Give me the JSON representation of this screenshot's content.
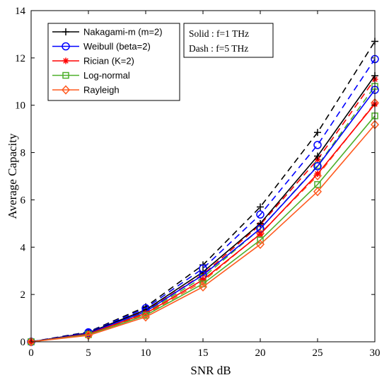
{
  "chart_data": {
    "type": "line",
    "title": "",
    "xlabel": "SNR dB",
    "ylabel": "Average Capacity",
    "xlim": [
      0,
      30
    ],
    "ylim": [
      0,
      14
    ],
    "xticks": [
      0,
      5,
      10,
      15,
      20,
      25,
      30
    ],
    "yticks": [
      0,
      2,
      4,
      6,
      8,
      10,
      12,
      14
    ],
    "grid": false,
    "legend_position": "top-left",
    "x": [
      0,
      5,
      10,
      15,
      20,
      25,
      30
    ],
    "line_style_note": [
      "Solid : f=1 THz",
      "Dash : f=5 THz"
    ],
    "series": [
      {
        "name": "Nakagami-m (m=2)",
        "color": "#000000",
        "marker": "plus",
        "solid": [
          0,
          0.38,
          1.35,
          2.95,
          5.0,
          7.85,
          11.25
        ],
        "dash": [
          0,
          0.42,
          1.48,
          3.25,
          5.7,
          8.85,
          12.7
        ]
      },
      {
        "name": "Weibull (beta=2)",
        "color": "#0000ff",
        "marker": "circle",
        "solid": [
          0,
          0.36,
          1.28,
          2.82,
          4.78,
          7.42,
          10.65
        ],
        "dash": [
          0,
          0.4,
          1.42,
          3.1,
          5.38,
          8.32,
          11.95
        ]
      },
      {
        "name": "Rician (K=2)",
        "color": "#ff0000",
        "marker": "star",
        "solid": [
          0,
          0.33,
          1.2,
          2.62,
          4.55,
          7.1,
          10.05
        ],
        "dash": [
          0,
          0.36,
          1.3,
          2.85,
          4.95,
          7.7,
          11.1
        ]
      },
      {
        "name": "Log-normal",
        "color": "#4daf2a",
        "marker": "square",
        "solid": [
          0,
          0.3,
          1.12,
          2.45,
          4.3,
          6.65,
          9.55
        ],
        "dash": [
          0,
          0.34,
          1.24,
          2.72,
          4.78,
          7.45,
          10.8
        ]
      },
      {
        "name": "Rayleigh",
        "color": "#ff5a1f",
        "marker": "diamond",
        "solid": [
          0,
          0.27,
          1.05,
          2.32,
          4.12,
          6.35,
          9.18
        ],
        "dash": [
          0,
          0.31,
          1.15,
          2.55,
          4.58,
          7.02,
          10.1
        ]
      }
    ]
  }
}
